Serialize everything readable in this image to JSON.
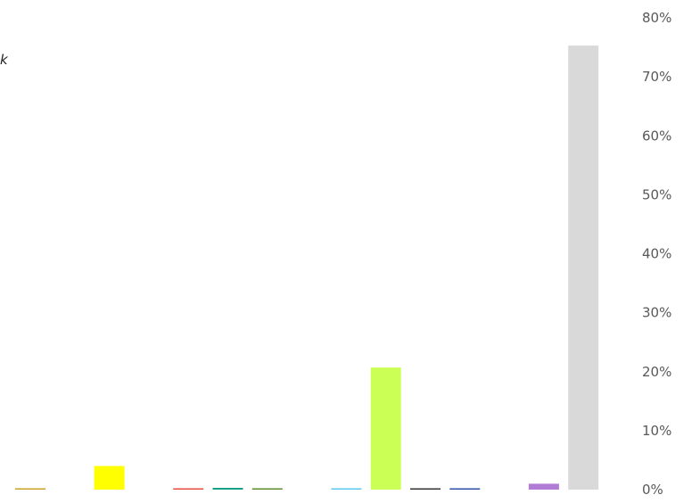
{
  "chart_data": {
    "type": "bar",
    "title": "",
    "xlabel": "",
    "ylabel": "",
    "ylim": [
      0,
      80
    ],
    "y_axis_position": "right",
    "y_ticks": [
      "0%",
      "10%",
      "20%",
      "30%",
      "40%",
      "50%",
      "60%",
      "70%",
      "80%"
    ],
    "y_tick_values": [
      0,
      10,
      20,
      30,
      40,
      50,
      60,
      70,
      80
    ],
    "grid": false,
    "legend": "none",
    "partial_label_text": "k",
    "bars": [
      {
        "value": 0.2,
        "color": "#C9A227"
      },
      {
        "value": 0.0,
        "color": "#FFFFFF"
      },
      {
        "value": 4.0,
        "color": "#FFFF00"
      },
      {
        "value": 0.0,
        "color": "#FFFFFF"
      },
      {
        "value": 0.2,
        "color": "#E74C3C"
      },
      {
        "value": 0.3,
        "color": "#16A085"
      },
      {
        "value": 0.2,
        "color": "#5B8C2A"
      },
      {
        "value": 0.0,
        "color": "#FFFFFF"
      },
      {
        "value": 0.2,
        "color": "#5BC8F0"
      },
      {
        "value": 20.7,
        "color": "#CCFF55"
      },
      {
        "value": 0.2,
        "color": "#333333"
      },
      {
        "value": 0.2,
        "color": "#2C4FA8"
      },
      {
        "value": 0.0,
        "color": "#FFFFFF"
      },
      {
        "value": 1.0,
        "color": "#B07CD6"
      },
      {
        "value": 75.3,
        "color": "#D9D9D9"
      }
    ]
  }
}
